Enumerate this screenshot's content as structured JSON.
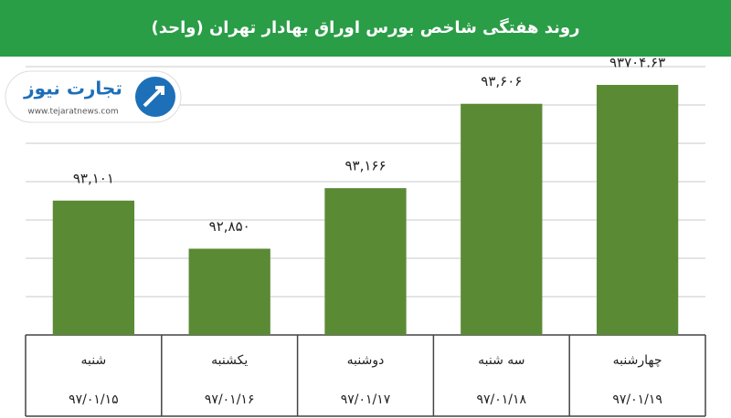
{
  "chart_data": {
    "type": "bar",
    "title": "روند هفتگی شاخص بورس اوراق بهادار تهران (واحد)",
    "categories": [
      "شنبه",
      "یکشنبه",
      "دوشنبه",
      "سه شنبه",
      "چهارشنبه"
    ],
    "dates": [
      "۹۷/۰۱/۱۵",
      "۹۷/۰۱/۱۶",
      "۹۷/۰۱/۱۷",
      "۹۷/۰۱/۱۸",
      "۹۷/۰۱/۱۹"
    ],
    "values": [
      93101,
      92850,
      93166,
      93606,
      93704.63
    ],
    "value_labels": [
      "۹۳,۱۰۱",
      "۹۲,۸۵۰",
      "۹۳,۱۶۶",
      "۹۳,۶۰۶",
      "۹۳۷۰۴.۶۳"
    ],
    "color": "#5b8a35",
    "ylim": [
      92400,
      93800
    ],
    "yticks": [
      92400,
      92600,
      92800,
      93000,
      93200,
      93400,
      93600,
      93800
    ],
    "grid": true
  },
  "logo": {
    "name": "تجارت نیوز",
    "url": "www.tejaratnews.com"
  }
}
